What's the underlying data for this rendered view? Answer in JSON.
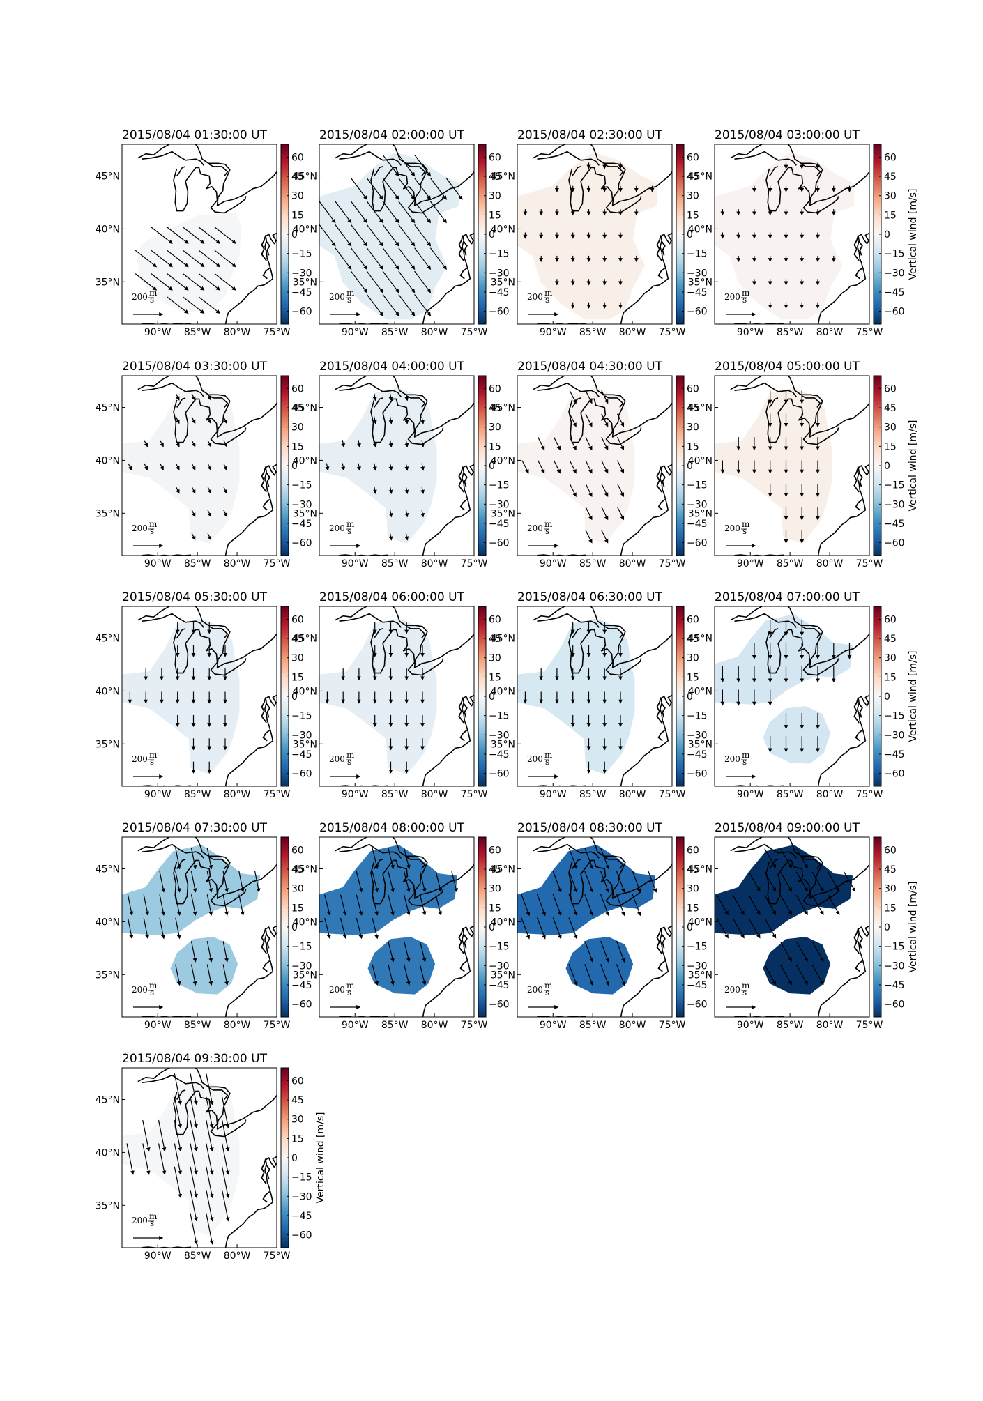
{
  "figure": {
    "colorbar_label": "Vertical wind [m/s]",
    "colorbar_ticks": [
      "60",
      "45",
      "30",
      "15",
      "0",
      "−15",
      "−30",
      "−45",
      "−60"
    ],
    "colorbar_range": [
      -70,
      70
    ],
    "lon_ticks": [
      "90°W",
      "85°W",
      "80°W",
      "75°W"
    ],
    "lat_ticks": [
      "45°N",
      "40°N",
      "35°N"
    ],
    "map_extent": {
      "lon": [
        -94.5,
        -75
      ],
      "lat": [
        31,
        48
      ]
    },
    "reference_arrow": {
      "value": "200",
      "unit_num": "m",
      "unit_den": "s"
    },
    "colormap": [
      "#053061",
      "#2166ac",
      "#4393c3",
      "#92c5de",
      "#d1e5f0",
      "#f7f7f7",
      "#fddbc7",
      "#f4a582",
      "#d6604d",
      "#b2182b",
      "#67001f"
    ],
    "coast_color": "#000000",
    "arrow_color": "#000000"
  },
  "panels": [
    {
      "title": "2015/08/04 01:30:00 UT",
      "value": -1,
      "region": "south-only",
      "wind": {
        "u": 45,
        "v": -35,
        "len": 38
      }
    },
    {
      "title": "2015/08/04 02:00:00 UT",
      "value": -8,
      "region": "full",
      "wind": {
        "u": 30,
        "v": -40,
        "len": 38
      }
    },
    {
      "title": "2015/08/04 02:30:00 UT",
      "value": 4,
      "region": "full",
      "wind": {
        "u": 0,
        "v": -10,
        "len": 8
      }
    },
    {
      "title": "2015/08/04 03:00:00 UT",
      "value": 2,
      "region": "full",
      "wind": {
        "u": 0,
        "v": -10,
        "len": 8
      }
    },
    {
      "title": "2015/08/04 03:30:00 UT",
      "value": -2,
      "region": "west",
      "wind": {
        "u": 5,
        "v": -10,
        "len": 10
      }
    },
    {
      "title": "2015/08/04 04:00:00 UT",
      "value": -6,
      "region": "west",
      "wind": {
        "u": 2,
        "v": -10,
        "len": 10
      }
    },
    {
      "title": "2015/08/04 04:30:00 UT",
      "value": 2,
      "region": "west",
      "wind": {
        "u": 10,
        "v": -20,
        "len": 20
      }
    },
    {
      "title": "2015/08/04 05:00:00 UT",
      "value": 4,
      "region": "west",
      "wind": {
        "u": 0,
        "v": -10,
        "len": 18
      }
    },
    {
      "title": "2015/08/04 05:30:00 UT",
      "value": -7,
      "region": "west",
      "wind": {
        "u": 0,
        "v": -10,
        "len": 16
      }
    },
    {
      "title": "2015/08/04 06:00:00 UT",
      "value": -7,
      "region": "west",
      "wind": {
        "u": 0,
        "v": -10,
        "len": 16
      }
    },
    {
      "title": "2015/08/04 06:30:00 UT",
      "value": -12,
      "region": "west",
      "wind": {
        "u": 0,
        "v": -10,
        "len": 16
      }
    },
    {
      "title": "2015/08/04 07:00:00 UT",
      "value": -13,
      "region": "split",
      "wind": {
        "u": 0,
        "v": -10,
        "len": 22
      }
    },
    {
      "title": "2015/08/04 07:30:00 UT",
      "value": -26,
      "region": "split",
      "wind": {
        "u": 5,
        "v": -25,
        "len": 30
      }
    },
    {
      "title": "2015/08/04 08:00:00 UT",
      "value": -50,
      "region": "split",
      "wind": {
        "u": 10,
        "v": -40,
        "len": 30
      }
    },
    {
      "title": "2015/08/04 08:30:00 UT",
      "value": -55,
      "region": "split",
      "wind": {
        "u": 15,
        "v": -40,
        "len": 32
      }
    },
    {
      "title": "2015/08/04 09:00:00 UT",
      "value": -70,
      "region": "split",
      "wind": {
        "u": 20,
        "v": -35,
        "len": 32
      }
    },
    {
      "title": "2015/08/04 09:30:00 UT",
      "value": -1,
      "region": "west",
      "wind": {
        "u": 8,
        "v": -40,
        "len": 45
      }
    }
  ]
}
